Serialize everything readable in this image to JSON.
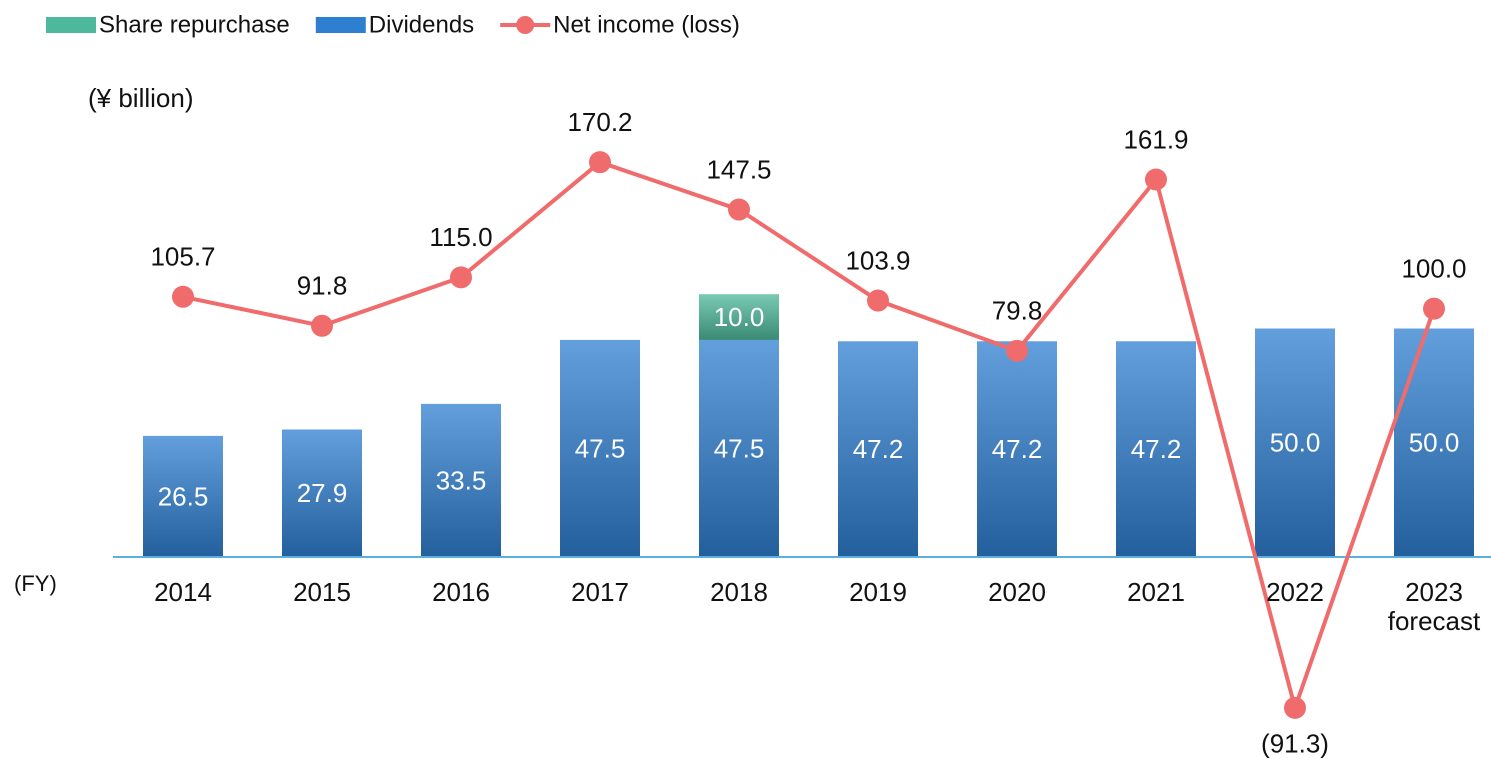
{
  "chart_data": {
    "type": "bar-line",
    "unit_label": "(¥ billion)",
    "x_label": "(FY)",
    "categories": [
      "2014",
      "2015",
      "2016",
      "2017",
      "2018",
      "2019",
      "2020",
      "2021",
      "2022",
      "2023\nforecast"
    ],
    "ylim": [
      0,
      100
    ],
    "y2lim": [
      -19,
      200
    ],
    "legend": "top-left",
    "series": [
      {
        "name": "Share repurchase",
        "color": "#4db89b",
        "type": "bar",
        "stack": true,
        "values": [
          null,
          null,
          null,
          null,
          10,
          null,
          null,
          null,
          null,
          null
        ],
        "value_labels": [
          null,
          null,
          null,
          null,
          "10.0",
          null,
          null,
          null,
          null,
          null
        ]
      },
      {
        "name": "Dividends",
        "color": "#2f7fd0",
        "type": "bar",
        "stack": true,
        "values": [
          26.5,
          27.9,
          33.5,
          47.5,
          47.5,
          47.2,
          47.2,
          47.2,
          50,
          50
        ],
        "value_labels": [
          "26.5",
          "27.9",
          "33.5",
          "47.5",
          "47.5",
          "47.2",
          "47.2",
          "47.2",
          "50.0",
          "50.0"
        ]
      },
      {
        "name": "Net income (loss)",
        "color": "#f06b6b",
        "type": "line",
        "axis": "y2",
        "values": [
          105.7,
          91.8,
          115,
          170.2,
          147.5,
          103.9,
          79.8,
          161.9,
          -91.3,
          100
        ],
        "value_labels": [
          "105.7",
          "91.8",
          "115.0",
          "170.2",
          "147.5",
          "103.9",
          "79.8",
          "161.9",
          "(91.3)",
          "100.0"
        ]
      }
    ]
  }
}
